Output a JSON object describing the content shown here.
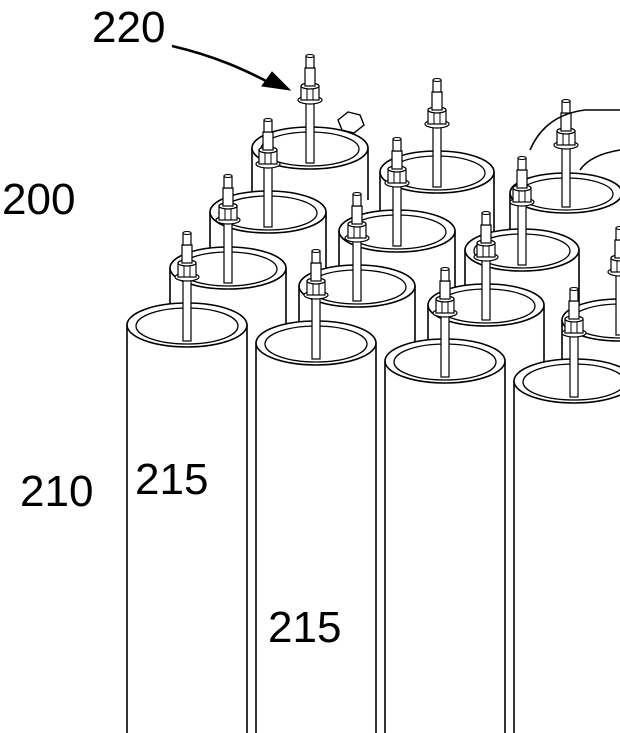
{
  "figure": {
    "line_color": "#000000",
    "fill_color": "#ffffff",
    "labels": {
      "ref_220": "220",
      "ref_200": "200",
      "ref_210": "210",
      "ref_215_left": "215",
      "ref_215_center": "215"
    }
  }
}
